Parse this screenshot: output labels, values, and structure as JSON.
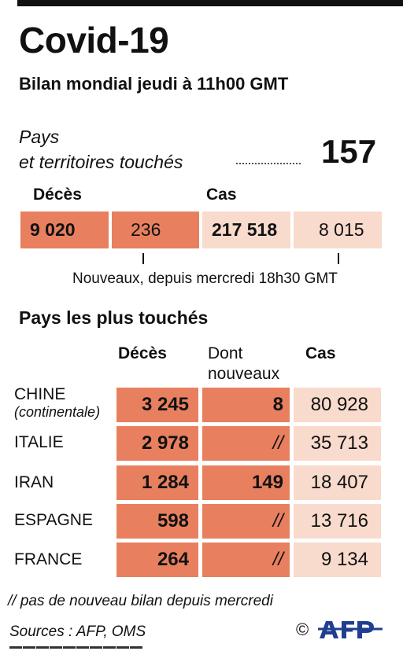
{
  "title": "Covid-19",
  "subtitle": "Bilan mondial jeudi à 11h00 GMT",
  "pays": {
    "label_line1": "Pays",
    "label_line2": "et territoires touchés",
    "value": "157"
  },
  "world": {
    "deces_label": "Décès",
    "cas_label": "Cas",
    "deces_total": "9 020",
    "deces_new": "236",
    "cas_total": "217 518",
    "cas_new": "8 015",
    "note": "Nouveaux, depuis mercredi 18h30 GMT"
  },
  "table": {
    "title": "Pays les plus touchés",
    "headers": {
      "deces": "Décès",
      "new_line1": "Dont",
      "new_line2": "nouveaux",
      "cas": "Cas"
    },
    "rows": [
      {
        "country": "CHINE",
        "country_sub": "(continentale)",
        "deces": "3 245",
        "new": "8",
        "cas": "80 928"
      },
      {
        "country": "ITALIE",
        "country_sub": "",
        "deces": "2 978",
        "new": "//",
        "cas": "35 713"
      },
      {
        "country": "IRAN",
        "country_sub": "",
        "deces": "1 284",
        "new": "149",
        "cas": "18 407"
      },
      {
        "country": "ESPAGNE",
        "country_sub": "",
        "deces": "598",
        "new": "//",
        "cas": "13 716"
      },
      {
        "country": "FRANCE",
        "country_sub": "",
        "deces": "264",
        "new": "//",
        "cas": "9 134"
      }
    ]
  },
  "footnote": "// pas de nouveau bilan depuis mercredi",
  "sources": "Sources : AFP, OMS",
  "copyright": "©",
  "logo": "AFP",
  "colors": {
    "dark": "#e8805f",
    "light": "#f8dbcc",
    "logo": "#1f3f8f"
  }
}
